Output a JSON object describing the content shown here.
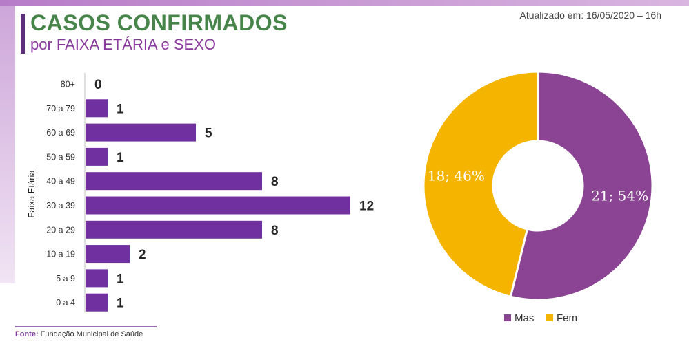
{
  "header": {
    "title": "CASOS CONFIRMADOS",
    "subtitle": "por FAIXA ETÁRIA e SEXO",
    "updated": "Atualizado em: 16/05/2020 – 16h"
  },
  "footer": {
    "source_label": "Fonte:",
    "source_text": "Fundação Municipal de Saúde"
  },
  "colors": {
    "bar": "#7030a0",
    "mas": "#8b4393",
    "fem": "#f5b400"
  },
  "chart_data": [
    {
      "type": "bar",
      "orientation": "horizontal",
      "ylabel": "Faixa Etária",
      "categories": [
        "80+",
        "70 a 79",
        "60 a 69",
        "50 a 59",
        "40 a 49",
        "30 a 39",
        "20 a 29",
        "10 a 19",
        "5 a 9",
        "0 a 4"
      ],
      "values": [
        0,
        1,
        5,
        1,
        8,
        12,
        8,
        2,
        1,
        1
      ],
      "xlim": [
        0,
        12
      ],
      "grid": false
    },
    {
      "type": "pie",
      "style": "donut",
      "slices": [
        {
          "name": "Mas",
          "value": 21,
          "label": "21; 54%"
        },
        {
          "name": "Fem",
          "value": 18,
          "label": "18; 46%"
        }
      ],
      "legend": "bottom"
    }
  ]
}
